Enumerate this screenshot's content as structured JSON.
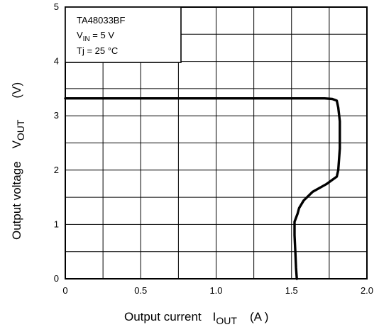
{
  "chart_data": {
    "type": "line",
    "annotation": {
      "device": "TA48033BF",
      "vin_symbol": "V",
      "vin_sub": "IN",
      "vin_value": " = 5 V",
      "tj": "Tj = 25 °C"
    },
    "xlabel": {
      "text": "Output current",
      "symbol": "I",
      "sub": "OUT",
      "unit": "(A )"
    },
    "ylabel": {
      "text": "Output voltage",
      "symbol": "V",
      "sub": "OUT",
      "unit": "(V)"
    },
    "xlim": [
      0,
      2.0
    ],
    "ylim": [
      0,
      5
    ],
    "x_ticks": [
      "0",
      "0.5",
      "1.0",
      "1.5",
      "2.0"
    ],
    "y_ticks": [
      "0",
      "1",
      "2",
      "3",
      "4",
      "5"
    ],
    "grid": true,
    "series": [
      {
        "x": [
          0,
          1.0,
          1.6,
          1.72,
          1.77,
          1.8,
          1.81,
          1.82,
          1.82,
          1.81,
          1.8,
          1.73,
          1.64,
          1.58,
          1.55,
          1.54,
          1.52,
          1.52,
          1.525,
          1.53,
          1.535
        ],
        "y": [
          3.32,
          3.32,
          3.32,
          3.32,
          3.31,
          3.28,
          3.15,
          2.9,
          2.4,
          2.0,
          1.88,
          1.74,
          1.6,
          1.44,
          1.3,
          1.2,
          1.05,
          0.8,
          0.5,
          0.2,
          0
        ]
      }
    ]
  }
}
